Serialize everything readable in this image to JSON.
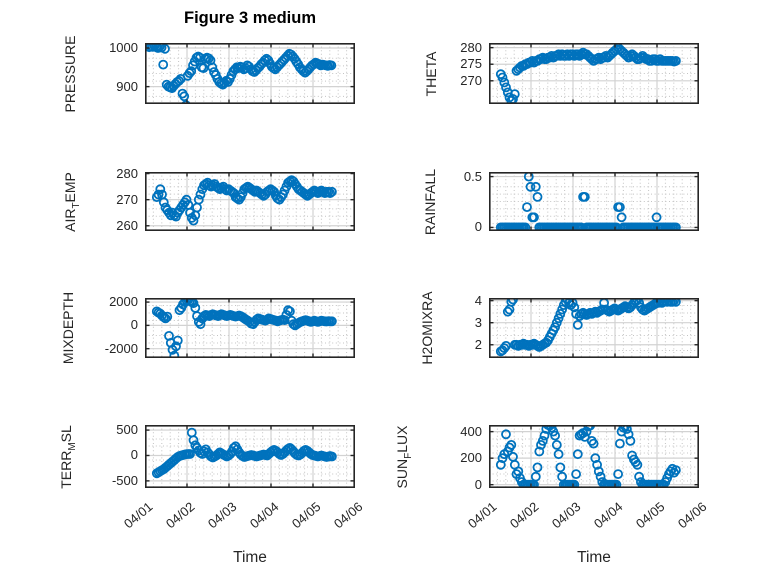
{
  "title": "Figure 3 medium",
  "xlabel": "Time",
  "colors": {
    "marker": "#0072BD",
    "axis": "#262626",
    "major_grid": "#d2d2d2",
    "minor_grid": "#c4c4c4",
    "background": "#ffffff"
  },
  "xticklabels": [
    "04/01",
    "04/02",
    "04/03",
    "04/04",
    "04/05",
    "04/06"
  ],
  "chart_data": [
    {
      "type": "scatter",
      "name": "PRESSURE",
      "ylabel_parts": [
        {
          "t": "PRESSURE"
        }
      ],
      "yticks": [
        900,
        1000
      ],
      "ylim": [
        855,
        1013
      ],
      "xlim_days": [
        0,
        5
      ],
      "x0": 0.1,
      "dx": 0.0417,
      "y": [
        1002,
        1004,
        1003,
        1005,
        1002,
        1000,
        1004,
        1001,
        957,
        998,
        905,
        900,
        898,
        896,
        902,
        907,
        912,
        915,
        920,
        882,
        875,
        852,
        928,
        935,
        940,
        955,
        965,
        975,
        978,
        975,
        950,
        948,
        972,
        975,
        973,
        968,
        950,
        938,
        930,
        920,
        912,
        908,
        905,
        910,
        915,
        912,
        920,
        930,
        940,
        945,
        950,
        948,
        952,
        950,
        945,
        948,
        955,
        952,
        945,
        940,
        938,
        942,
        948,
        952,
        958,
        962,
        968,
        972,
        968,
        960,
        952,
        948,
        945,
        950,
        955,
        960,
        965,
        970,
        975,
        980,
        985,
        983,
        978,
        972,
        965,
        958,
        950,
        945,
        940,
        936,
        940,
        945,
        950,
        955,
        958,
        962,
        960,
        958,
        955,
        957,
        956,
        955,
        954,
        956,
        955
      ]
    },
    {
      "type": "scatter",
      "name": "THETA",
      "ylabel_parts": [
        {
          "t": "THETA"
        }
      ],
      "yticks": [
        270,
        275,
        280
      ],
      "ylim": [
        263,
        281.4
      ],
      "xlim_days": [
        0,
        5
      ],
      "x0": 0.28,
      "dx": 0.0417,
      "y": [
        272,
        271,
        269.5,
        268,
        266.5,
        265,
        264,
        264.5,
        266,
        273,
        273.5,
        274,
        274.5,
        274.5,
        275,
        275,
        275.5,
        275.5,
        276,
        275.5,
        276,
        276,
        276.5,
        276.5,
        277,
        276.5,
        276.5,
        277,
        277,
        277.5,
        277,
        277.5,
        277.5,
        278,
        277.5,
        278,
        277.5,
        277.5,
        278,
        277.5,
        278,
        278,
        277.5,
        278,
        278,
        277.5,
        278,
        278.5,
        278,
        278,
        277.5,
        277,
        276.5,
        276,
        276.5,
        276.5,
        277,
        276.5,
        277,
        277,
        277.5,
        277,
        277.5,
        278,
        278.5,
        279,
        279.5,
        280,
        279.5,
        279,
        278.5,
        278,
        277.5,
        277,
        277.5,
        278,
        277.5,
        277,
        276.5,
        276.5,
        277,
        277.5,
        277,
        276.5,
        276.5,
        276,
        276,
        276.5,
        276.5,
        276,
        276,
        276.5,
        276,
        276,
        276,
        276,
        276,
        276,
        276,
        275.8,
        276
      ]
    },
    {
      "type": "scatter",
      "name": "AIR_TEMP",
      "ylabel_parts": [
        {
          "t": "AIR"
        },
        {
          "t": "T",
          "sub": true
        },
        {
          "t": "EMP"
        }
      ],
      "yticks": [
        260,
        270,
        280
      ],
      "ylim": [
        258,
        280.6
      ],
      "xlim_days": [
        0,
        5
      ],
      "x0": 0.28,
      "dx": 0.0417,
      "y": [
        271,
        272,
        274,
        272,
        269,
        267,
        266,
        265,
        264,
        265,
        264,
        263.5,
        265,
        266,
        267,
        268,
        269,
        270,
        268,
        265,
        263,
        262,
        264,
        267,
        270,
        272,
        274,
        275.5,
        276,
        276.5,
        275.5,
        275,
        275.5,
        276,
        275,
        274.5,
        274,
        274.5,
        275,
        274,
        273.5,
        274,
        273.5,
        273,
        272.5,
        271,
        270.5,
        270,
        271,
        272.5,
        274,
        274.5,
        275,
        274.5,
        274,
        273.5,
        273,
        273.5,
        273,
        272.5,
        272,
        271.5,
        272,
        273,
        273.5,
        274,
        273.5,
        273,
        271.5,
        270.5,
        270,
        271,
        272,
        273.5,
        275,
        276.5,
        277,
        277.5,
        277,
        276,
        275,
        274,
        273.5,
        273,
        272.5,
        272,
        271.5,
        272,
        272.5,
        273,
        273.5,
        273,
        272.5,
        273,
        273.5,
        273,
        272.5,
        273,
        273,
        272.5,
        273
      ]
    },
    {
      "type": "scatter",
      "name": "RAINFALL",
      "ylabel_parts": [
        {
          "t": "RAINFALL"
        }
      ],
      "yticks": [
        0,
        0.5
      ],
      "ylim": [
        -0.035,
        0.545
      ],
      "xlim_days": [
        0,
        5
      ],
      "x0": 0.28,
      "dx": 0.0417,
      "y": [
        0,
        0,
        0,
        0,
        0,
        0,
        0,
        0,
        0,
        0,
        0,
        0,
        0,
        0,
        0,
        0.2,
        0.5,
        0.4,
        0.1,
        0.1,
        0.4,
        0.3,
        0,
        0,
        0,
        0,
        0,
        0,
        0,
        0,
        0,
        0,
        0,
        0,
        0,
        0,
        0,
        0,
        0,
        0,
        0,
        0,
        0,
        0,
        0,
        0,
        0,
        0.3,
        0.3,
        0,
        0,
        0,
        0,
        0,
        0,
        0,
        0,
        0,
        0,
        0,
        0,
        0,
        0,
        0,
        0,
        0,
        0,
        0.2,
        0.2,
        0.1,
        0,
        0,
        0,
        0,
        0,
        0,
        0,
        0,
        0,
        0,
        0,
        0,
        0,
        0,
        0,
        0,
        0,
        0,
        0,
        0.1,
        0,
        0,
        0,
        0,
        0,
        0,
        0,
        0,
        0,
        0,
        0
      ]
    },
    {
      "type": "scatter",
      "name": "MIXDEPTH",
      "ylabel_parts": [
        {
          "t": "MIXDEPTH"
        }
      ],
      "yticks": [
        -2000,
        0,
        2000
      ],
      "ylim": [
        -2800,
        2350
      ],
      "xlim_days": [
        0,
        5
      ],
      "x0": 0.28,
      "dx": 0.0417,
      "y": [
        1200,
        1100,
        1000,
        850,
        700,
        600,
        750,
        -900,
        -1500,
        -2100,
        -2600,
        -1800,
        -1300,
        1300,
        1500,
        1800,
        2000,
        2150,
        2200,
        2100,
        2000,
        1900,
        1500,
        800,
        300,
        100,
        600,
        800,
        900,
        850,
        800,
        900,
        950,
        900,
        850,
        800,
        900,
        950,
        900,
        850,
        800,
        850,
        900,
        850,
        800,
        750,
        800,
        850,
        800,
        700,
        600,
        500,
        400,
        300,
        150,
        100,
        300,
        500,
        600,
        550,
        500,
        450,
        400,
        500,
        600,
        550,
        500,
        450,
        400,
        350,
        400,
        450,
        500,
        450,
        900,
        1300,
        1200,
        400,
        100,
        0,
        100,
        200,
        300,
        350,
        400,
        450,
        400,
        350,
        300,
        350,
        400,
        350,
        300,
        350,
        400,
        380,
        350,
        330,
        360,
        340,
        350
      ]
    },
    {
      "type": "scatter",
      "name": "H2OMIXRA",
      "ylabel_parts": [
        {
          "t": "H2OMIXRA"
        }
      ],
      "yticks": [
        2,
        3,
        4
      ],
      "ylim": [
        1.4,
        4.12
      ],
      "xlim_days": [
        0,
        5
      ],
      "x0": 0.28,
      "dx": 0.0417,
      "y": [
        1.7,
        1.75,
        1.85,
        1.95,
        3.5,
        3.6,
        3.95,
        4.05,
        2.0,
        2.0,
        1.95,
        2.0,
        2.0,
        2.05,
        2.0,
        2.0,
        1.95,
        2.0,
        2.0,
        2.05,
        2.0,
        1.95,
        1.9,
        1.95,
        2.0,
        2.05,
        2.1,
        2.2,
        2.35,
        2.5,
        2.65,
        2.8,
        3.0,
        3.2,
        3.4,
        3.6,
        3.8,
        3.95,
        4.05,
        3.9,
        3.8,
        3.9,
        3.7,
        3.4,
        2.9,
        3.3,
        3.4,
        3.45,
        3.4,
        3.35,
        3.4,
        3.45,
        3.4,
        3.45,
        3.5,
        3.45,
        3.5,
        3.55,
        3.6,
        3.9,
        3.6,
        3.55,
        3.5,
        3.55,
        3.6,
        3.65,
        3.6,
        3.55,
        3.6,
        3.65,
        3.7,
        3.75,
        3.7,
        3.65,
        3.7,
        3.8,
        3.9,
        4.0,
        4.05,
        3.9,
        3.7,
        3.6,
        3.55,
        3.6,
        3.65,
        3.7,
        3.75,
        3.8,
        3.85,
        3.9,
        3.9,
        3.95,
        3.9,
        3.95,
        4.0,
        3.95,
        4.0,
        3.95,
        3.95,
        4.0,
        3.95
      ]
    },
    {
      "type": "scatter",
      "name": "TERR_MSL",
      "ylabel_parts": [
        {
          "t": "TERR"
        },
        {
          "t": "M",
          "sub": true
        },
        {
          "t": "SL"
        }
      ],
      "yticks": [
        -500,
        0,
        500
      ],
      "ylim": [
        -640,
        600
      ],
      "xlim_days": [
        0,
        5
      ],
      "x0": 0.28,
      "dx": 0.0417,
      "y": [
        -350,
        -330,
        -310,
        -290,
        -270,
        -240,
        -210,
        -180,
        -150,
        -120,
        -90,
        -60,
        -30,
        -10,
        0,
        10,
        20,
        25,
        30,
        30,
        450,
        300,
        200,
        150,
        100,
        50,
        30,
        80,
        120,
        60,
        20,
        -20,
        -40,
        -20,
        0,
        30,
        60,
        40,
        20,
        0,
        -20,
        0,
        30,
        80,
        150,
        180,
        120,
        60,
        20,
        -10,
        -30,
        -20,
        -10,
        0,
        10,
        0,
        -10,
        -20,
        -10,
        0,
        10,
        20,
        10,
        0,
        30,
        60,
        90,
        110,
        90,
        60,
        30,
        10,
        30,
        60,
        100,
        130,
        150,
        120,
        80,
        40,
        10,
        0,
        20,
        50,
        90,
        110,
        90,
        60,
        30,
        10,
        0,
        -10,
        -20,
        -10,
        0,
        -10,
        -20,
        -30,
        -20,
        -10,
        -20
      ]
    },
    {
      "type": "scatter",
      "name": "SUN_FLUX",
      "ylabel_parts": [
        {
          "t": "SUN"
        },
        {
          "t": "F",
          "sub": true
        },
        {
          "t": "LUX"
        }
      ],
      "yticks": [
        0,
        200,
        400
      ],
      "ylim": [
        -25,
        450
      ],
      "xlim_days": [
        0,
        5
      ],
      "x0": 0.28,
      "dx": 0.0417,
      "y": [
        150,
        200,
        230,
        380,
        250,
        280,
        300,
        210,
        150,
        80,
        100,
        50,
        20,
        0,
        0,
        0,
        0,
        0,
        0,
        0,
        60,
        130,
        250,
        300,
        330,
        370,
        420,
        450,
        445,
        430,
        400,
        370,
        300,
        230,
        130,
        60,
        0,
        0,
        0,
        0,
        0,
        0,
        0,
        80,
        230,
        370,
        380,
        390,
        360,
        400,
        440,
        445,
        330,
        310,
        200,
        150,
        100,
        60,
        20,
        0,
        0,
        0,
        0,
        0,
        0,
        0,
        0,
        80,
        310,
        400,
        430,
        440,
        420,
        380,
        330,
        220,
        190,
        170,
        150,
        60,
        20,
        0,
        0,
        0,
        0,
        0,
        0,
        0,
        0,
        0,
        0,
        0,
        0,
        0,
        20,
        50,
        80,
        100,
        120,
        90,
        110
      ]
    }
  ]
}
